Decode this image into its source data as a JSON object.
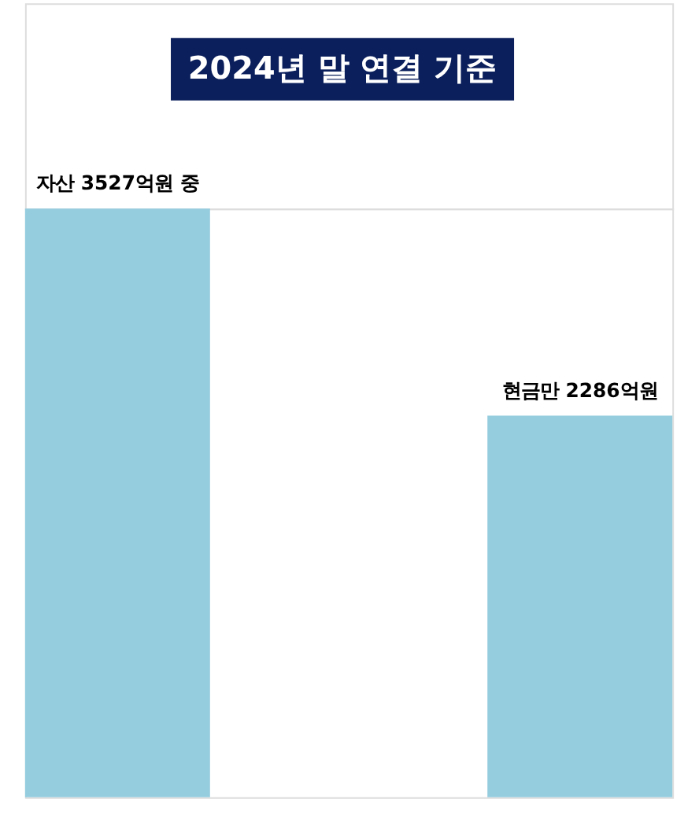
{
  "chart_data": {
    "type": "bar",
    "title": "2024년 말 연결 기준",
    "categories": [
      null,
      null
    ],
    "values": [
      3527,
      2286
    ],
    "color": "#95cddf",
    "value_labels": [
      "자산 3527억원 중",
      "현금만 2286억원"
    ]
  }
}
